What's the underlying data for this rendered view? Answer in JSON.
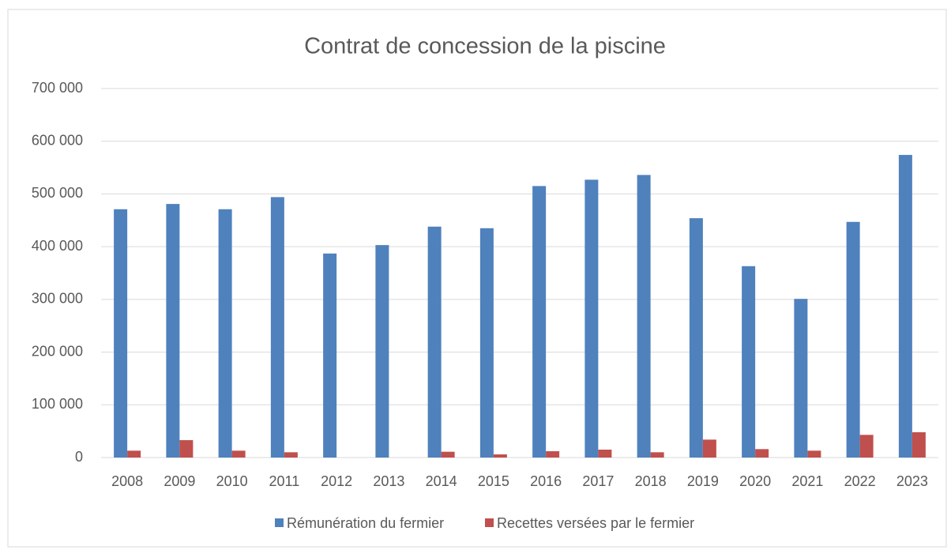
{
  "chart_data": {
    "type": "bar",
    "title": "Contrat de concession de la piscine",
    "categories": [
      "2008",
      "2009",
      "2010",
      "2011",
      "2012",
      "2013",
      "2014",
      "2015",
      "2016",
      "2017",
      "2018",
      "2019",
      "2020",
      "2021",
      "2022",
      "2023"
    ],
    "series": [
      {
        "name": "Rémunération du fermier",
        "color": "#4f81bd",
        "values": [
          471000,
          481000,
          471000,
          494000,
          387000,
          403000,
          438000,
          435000,
          515000,
          527000,
          536000,
          454000,
          363000,
          301000,
          447000,
          574000
        ]
      },
      {
        "name": "Recettes versées par le fermier",
        "color": "#c0504d",
        "values": [
          13000,
          33000,
          13000,
          10000,
          0,
          0,
          11000,
          6000,
          12000,
          15000,
          10000,
          34000,
          16000,
          13000,
          43000,
          48000
        ]
      }
    ],
    "ylim": [
      0,
      700000
    ],
    "yticks": [
      0,
      {
        "value": 100000,
        "label": "100 000"
      },
      {
        "value": 200000,
        "label": "200 000"
      },
      {
        "value": 300000,
        "label": "300 000"
      },
      {
        "value": 400000,
        "label": "400 000"
      },
      {
        "value": 500000,
        "label": "500 000"
      },
      {
        "value": 600000,
        "label": "600 000"
      },
      {
        "value": 700000,
        "label": "700 000"
      }
    ],
    "grid": true,
    "legend": "bottom"
  }
}
